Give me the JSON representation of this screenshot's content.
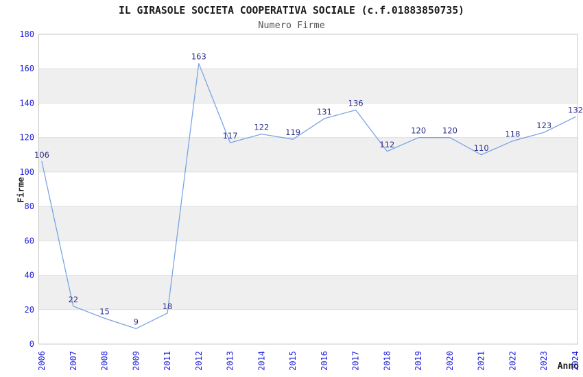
{
  "header": {
    "title": "IL GIRASOLE SOCIETA COOPERATIVA SOCIALE (c.f.01883850735)",
    "subtitle": "Numero Firme"
  },
  "chart_data": {
    "type": "line",
    "title": "IL GIRASOLE SOCIETA COOPERATIVA SOCIALE (c.f.01883850735)",
    "subtitle": "Numero Firme",
    "xlabel": "Anno",
    "ylabel": "Firme",
    "x": [
      "2006",
      "2007",
      "2008",
      "2009",
      "2011",
      "2012",
      "2013",
      "2014",
      "2015",
      "2016",
      "2017",
      "2018",
      "2019",
      "2020",
      "2021",
      "2022",
      "2023",
      "2024"
    ],
    "series": [
      {
        "name": "Numero Firme",
        "values": [
          106,
          22,
          15,
          9,
          18,
          163,
          117,
          122,
          119,
          131,
          136,
          112,
          120,
          120,
          110,
          118,
          123,
          132
        ]
      }
    ],
    "point_labels_visible": true,
    "ylim": [
      0,
      180
    ],
    "ytick_step": 20,
    "yticks": [
      0,
      20,
      40,
      60,
      80,
      100,
      120,
      140,
      160,
      180
    ],
    "grid": "horizontal",
    "legend": "none",
    "style": {
      "line_color": "#7aa4e3",
      "point_label_color": "#2d2d8c",
      "tick_label_color": "#1e1edc",
      "title_color": "#1a1a1a",
      "subtitle_color": "#555555",
      "axis_title_color": "#222222",
      "band_fill_color": "#efefef",
      "grid_color": "#dfdfdf",
      "border_color": "#c8c8c8",
      "background": "#ffffff"
    }
  }
}
